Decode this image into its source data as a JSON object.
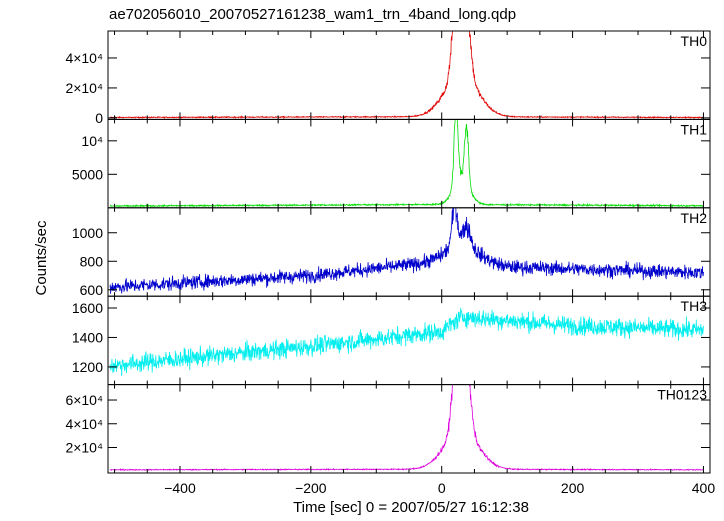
{
  "chart_data": {
    "type": "line",
    "title": "ae702056010_20070527161238_wam1_trn_4band_long.qdp",
    "xlabel": "Time [sec] 0 = 2007/05/27 16:12:38",
    "ylabel": "Counts/sec",
    "xlim": [
      -510,
      410
    ],
    "x_ticks": [
      -400,
      -200,
      0,
      200,
      400
    ],
    "x_tick_labels": [
      "−400",
      "−200",
      "0",
      "200",
      "400"
    ],
    "grid": false,
    "panels": [
      {
        "name": "TH0",
        "color": "#e00000",
        "ylim": [
          -1000,
          58000
        ],
        "y_ticks": [
          0,
          20000,
          40000
        ],
        "y_tick_labels": [
          "0",
          "2×10⁴",
          "4×10⁴"
        ],
        "baseline": [
          [
            -500,
            300
          ],
          [
            0,
            800
          ],
          [
            400,
            300
          ]
        ],
        "noise": 250,
        "peaks": [
          [
            22,
            52000,
            6
          ],
          [
            38,
            44000,
            6
          ],
          [
            30,
            28000,
            25
          ]
        ]
      },
      {
        "name": "TH1",
        "color": "#00dd00",
        "ylim": [
          0,
          13200
        ],
        "y_ticks": [
          5000,
          10000
        ],
        "y_tick_labels": [
          "5000",
          "10⁴"
        ],
        "baseline": [
          [
            -500,
            260
          ],
          [
            0,
            500
          ],
          [
            400,
            300
          ]
        ],
        "noise": 80,
        "peaks": [
          [
            22,
            11500,
            3
          ],
          [
            38,
            8500,
            3
          ],
          [
            30,
            4000,
            12
          ]
        ]
      },
      {
        "name": "TH2",
        "color": "#0000cc",
        "ylim": [
          555,
          1175
        ],
        "y_ticks": [
          600,
          800,
          1000
        ],
        "y_tick_labels": [
          "600",
          "800",
          "1000"
        ],
        "baseline": [
          [
            -500,
            620
          ],
          [
            -200,
            700
          ],
          [
            0,
            800
          ],
          [
            20,
            840
          ],
          [
            100,
            760
          ],
          [
            400,
            720
          ]
        ],
        "noise": 35,
        "peaks": [
          [
            20,
            280,
            4
          ],
          [
            38,
            140,
            6
          ],
          [
            30,
            90,
            25
          ]
        ]
      },
      {
        "name": "TH3",
        "color": "#00eeee",
        "ylim": [
          1080,
          1680
        ],
        "y_ticks": [
          1200,
          1400,
          1600
        ],
        "y_tick_labels": [
          "1200",
          "1400",
          "1600"
        ],
        "baseline": [
          [
            -500,
            1210
          ],
          [
            -200,
            1340
          ],
          [
            0,
            1440
          ],
          [
            30,
            1540
          ],
          [
            200,
            1480
          ],
          [
            400,
            1450
          ]
        ],
        "noise": 45,
        "peaks": []
      },
      {
        "name": "TH0123",
        "color": "#dd00dd",
        "ylim": [
          -1500,
          73000
        ],
        "y_ticks": [
          20000,
          40000,
          60000
        ],
        "y_tick_labels": [
          "2×10⁴",
          "4×10⁴",
          "6×10⁴"
        ],
        "baseline": [
          [
            -500,
            1200
          ],
          [
            0,
            1700
          ],
          [
            400,
            1200
          ]
        ],
        "noise": 300,
        "peaks": [
          [
            22,
            65000,
            6
          ],
          [
            38,
            56000,
            6
          ],
          [
            30,
            34000,
            25
          ]
        ]
      }
    ]
  }
}
